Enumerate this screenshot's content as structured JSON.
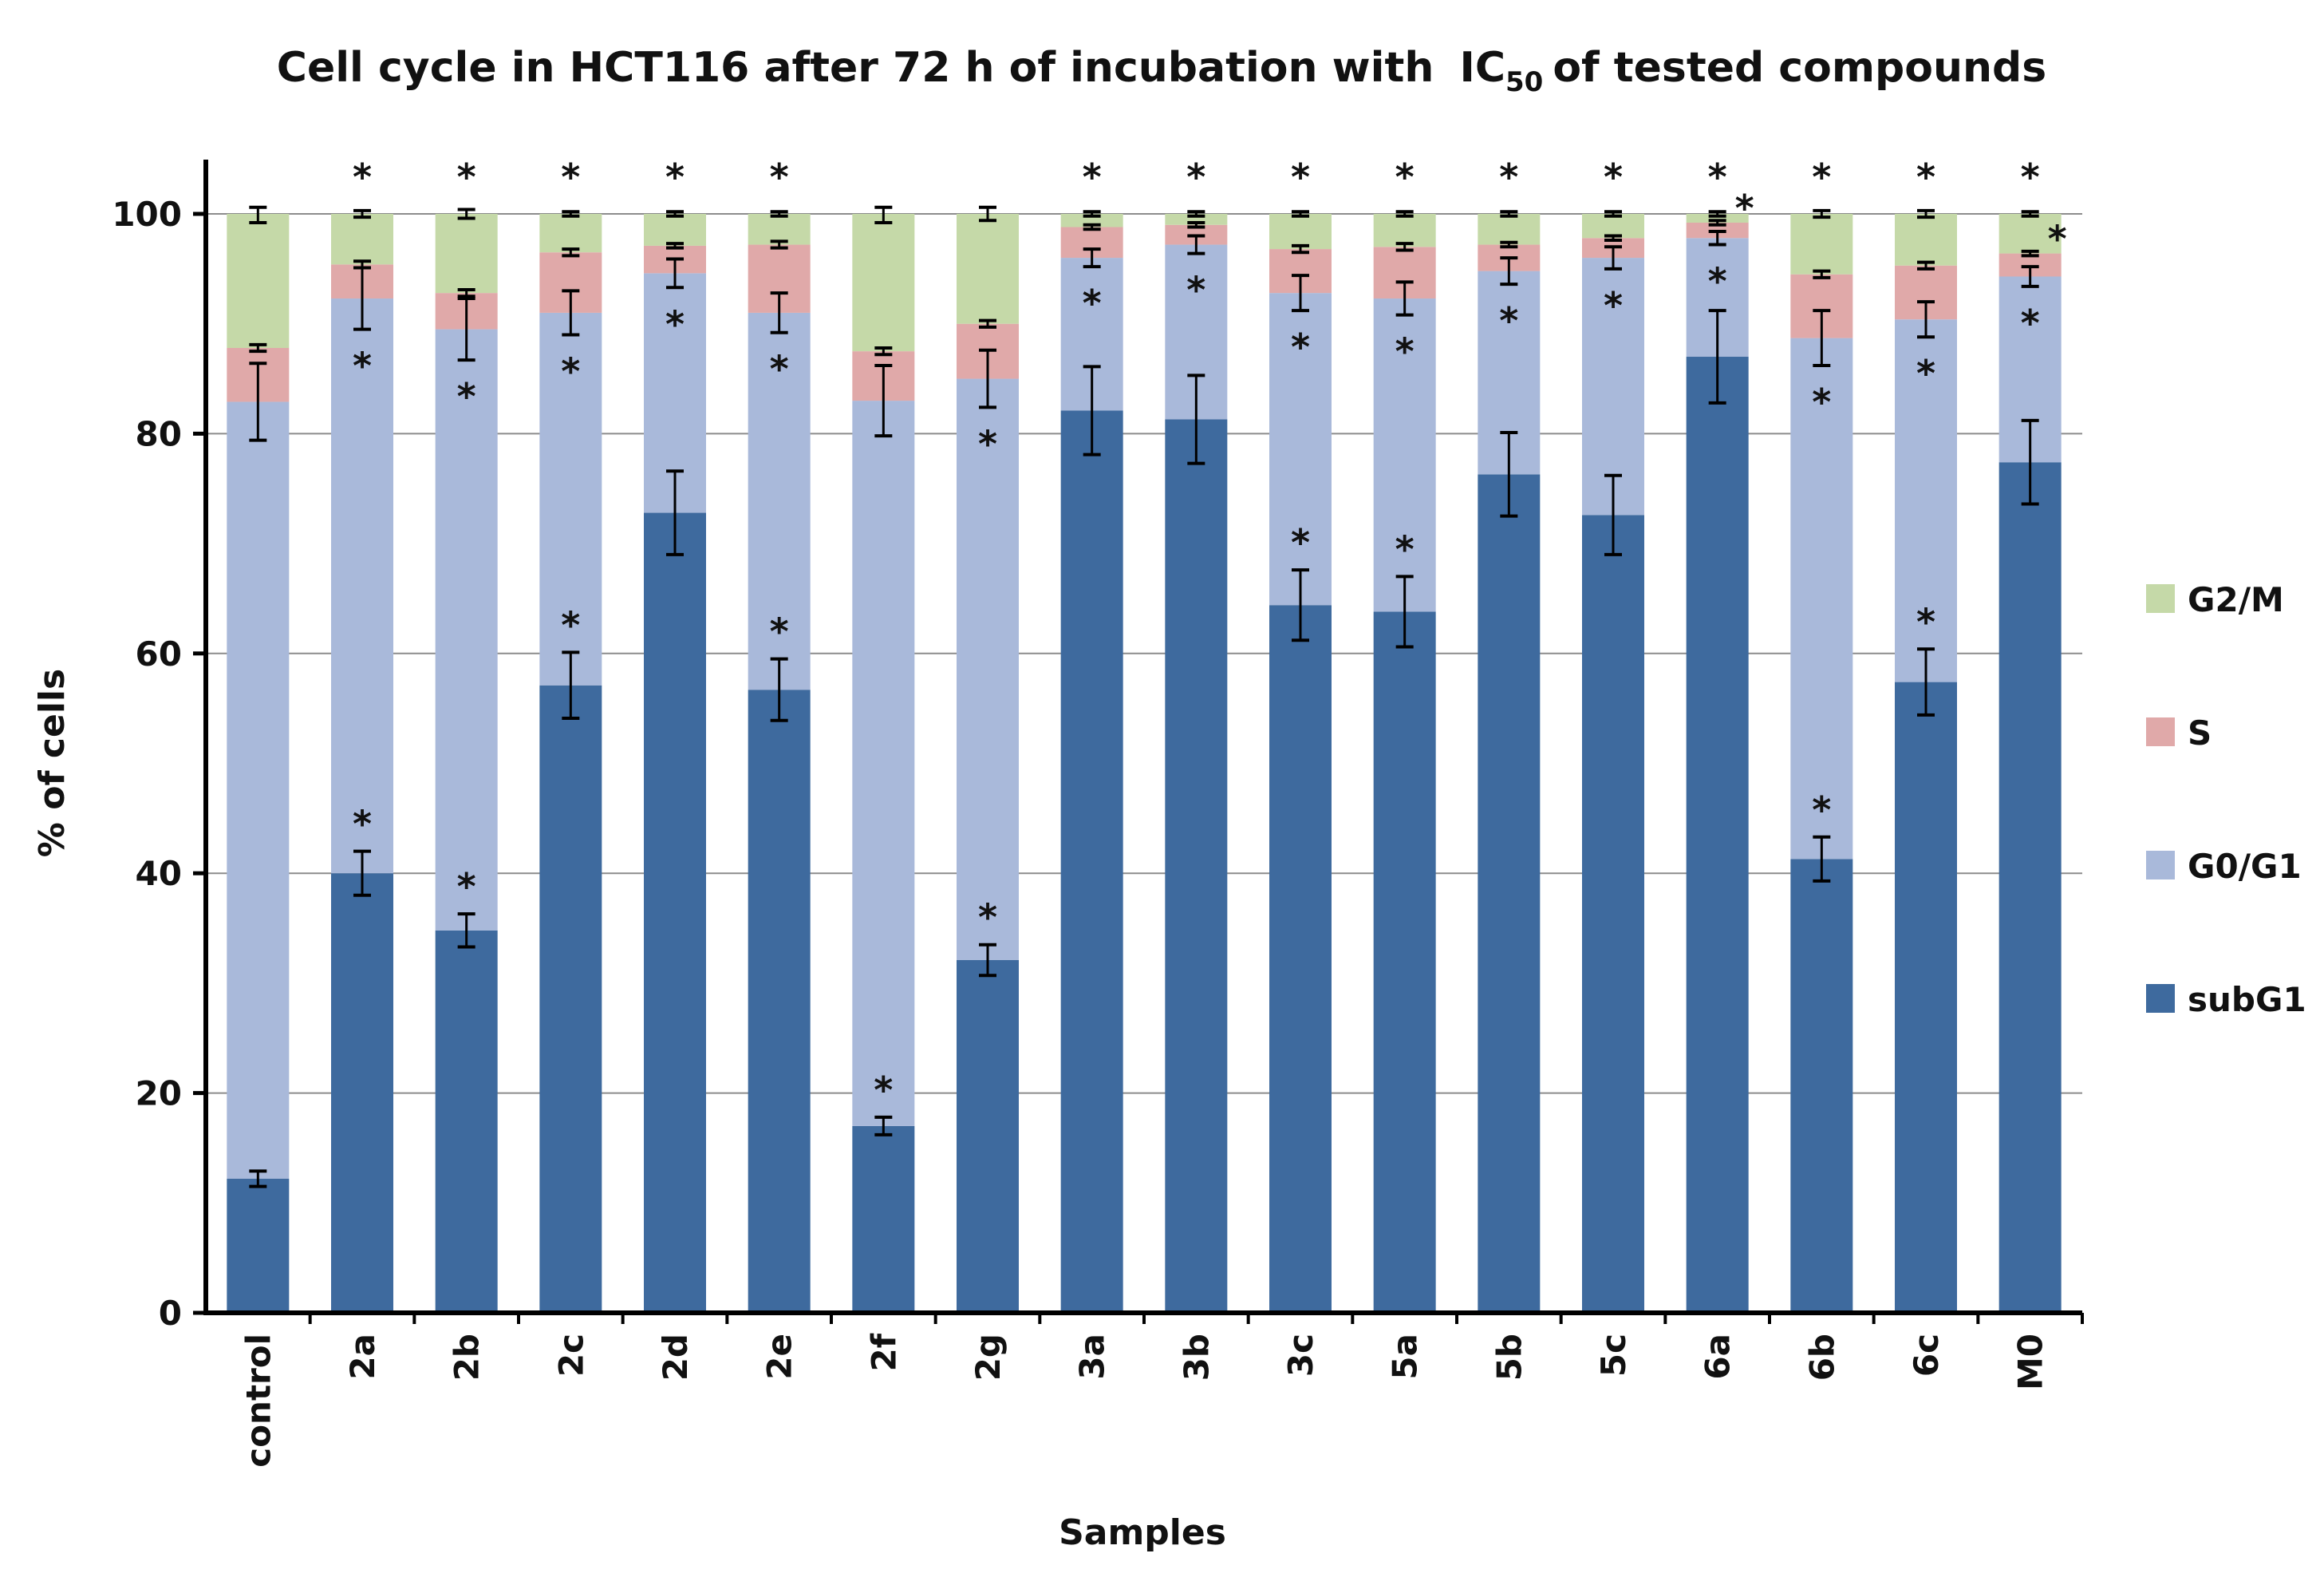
{
  "chart_data": {
    "type": "stacked-bar",
    "title": "Cell cycle in HCT116 after 72 h of incubation with",
    "title_ic": "IC",
    "title_ic_sub": "50",
    "title_tail": "of tested compounds",
    "xlabel": "Samples",
    "ylabel": "% of cells",
    "ylim": [
      0,
      100
    ],
    "yticks": [
      0,
      20,
      40,
      60,
      80,
      100
    ],
    "grid": true,
    "legend_position": "right",
    "categories": [
      "control",
      "2a",
      "2b",
      "2c",
      "2d",
      "2e",
      "2f",
      "2g",
      "3a",
      "3b",
      "3c",
      "5a",
      "5b",
      "5c",
      "6a",
      "6b",
      "6c",
      "M0"
    ],
    "series": [
      {
        "name": "subG1",
        "color": "#3e6a9e",
        "values": [
          12.2,
          40.0,
          34.8,
          57.1,
          72.8,
          56.7,
          17.0,
          32.1,
          82.1,
          81.3,
          64.4,
          63.8,
          76.3,
          72.6,
          87.0,
          41.3,
          57.4,
          77.4
        ],
        "errors": [
          0.7,
          2.0,
          1.5,
          3.0,
          3.8,
          2.8,
          0.8,
          1.4,
          4.0,
          4.0,
          3.2,
          3.2,
          3.8,
          3.6,
          4.2,
          2.0,
          3.0,
          3.8
        ],
        "significant": [
          false,
          true,
          true,
          true,
          false,
          true,
          true,
          true,
          false,
          false,
          true,
          true,
          false,
          false,
          false,
          true,
          true,
          false
        ]
      },
      {
        "name": "G0/G1",
        "color": "#a9b9da",
        "values": [
          70.7,
          52.3,
          54.7,
          33.9,
          21.8,
          34.3,
          66.0,
          52.9,
          13.9,
          15.9,
          28.4,
          28.5,
          18.5,
          23.4,
          10.8,
          47.4,
          33.0,
          16.9
        ],
        "errors": [
          3.5,
          2.8,
          2.8,
          2.0,
          1.3,
          1.8,
          3.2,
          2.6,
          0.8,
          0.8,
          1.6,
          1.5,
          1.2,
          1.0,
          0.6,
          2.5,
          1.6,
          0.9
        ],
        "significant": [
          false,
          true,
          true,
          true,
          true,
          true,
          false,
          true,
          true,
          true,
          true,
          true,
          true,
          true,
          true,
          true,
          true,
          true
        ]
      },
      {
        "name": "S",
        "color": "#e0a9a9",
        "values": [
          4.9,
          3.1,
          3.3,
          5.5,
          2.5,
          6.2,
          4.5,
          5.0,
          2.8,
          1.8,
          4.0,
          4.7,
          2.4,
          1.8,
          1.4,
          5.8,
          4.9,
          2.1
        ],
        "errors": [
          0.3,
          0.3,
          0.3,
          0.3,
          0.2,
          0.3,
          0.3,
          0.3,
          0.2,
          0.2,
          0.3,
          0.3,
          0.2,
          0.2,
          0.2,
          0.3,
          0.3,
          0.2
        ],
        "significant": [
          false,
          false,
          false,
          false,
          false,
          false,
          false,
          false,
          false,
          false,
          false,
          false,
          false,
          false,
          true,
          false,
          false,
          true
        ]
      },
      {
        "name": "G2/M",
        "color": "#c5d9a8",
        "values": [
          12.2,
          4.6,
          7.2,
          3.5,
          2.9,
          2.8,
          12.5,
          10.0,
          1.2,
          1.0,
          3.2,
          3.0,
          2.8,
          2.2,
          0.8,
          5.5,
          4.7,
          3.6
        ],
        "errors": [
          0.8,
          0.3,
          0.4,
          0.2,
          0.2,
          0.2,
          0.8,
          0.6,
          0.2,
          0.2,
          0.2,
          0.2,
          0.2,
          0.2,
          0.2,
          0.3,
          0.3,
          0.2
        ],
        "significant": [
          false,
          true,
          true,
          true,
          true,
          true,
          false,
          false,
          true,
          true,
          true,
          true,
          true,
          true,
          true,
          true,
          true,
          true
        ]
      }
    ],
    "significance_marker": "*"
  }
}
